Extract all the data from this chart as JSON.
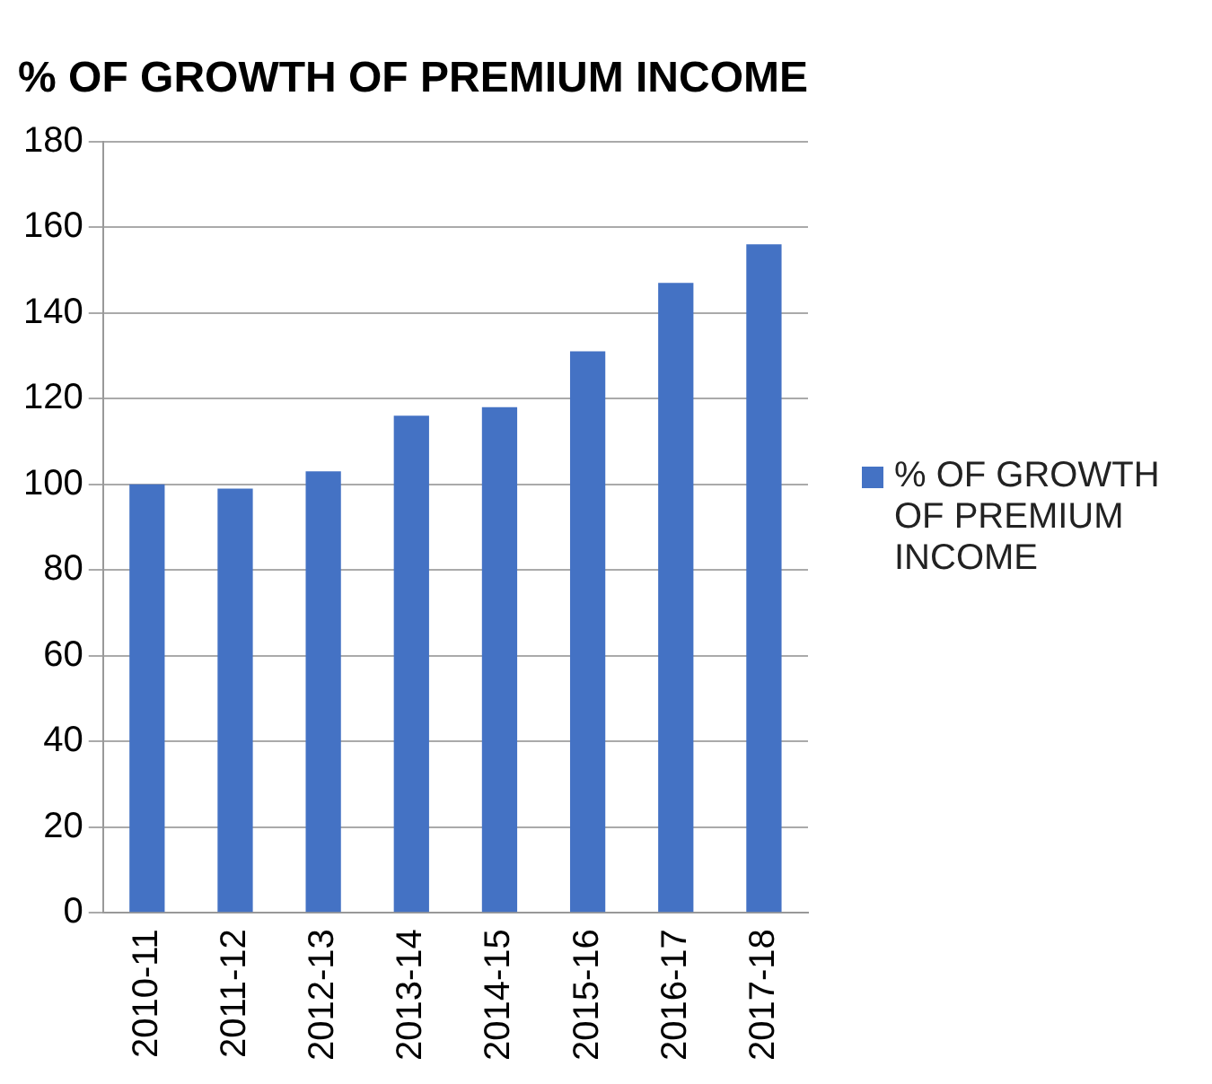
{
  "chart_data": {
    "type": "bar",
    "title": "% OF GROWTH OF PREMIUM INCOME",
    "categories": [
      "2010-11",
      "2011-12",
      "2012-13",
      "2013-14",
      "2014-15",
      "2015-16",
      "2016-17",
      "2017-18"
    ],
    "series": [
      {
        "name": "% OF GROWTH OF PREMIUM INCOME",
        "color": "#4472c4",
        "values": [
          100,
          99,
          103,
          116,
          118,
          131,
          147,
          156
        ]
      }
    ],
    "ylim": [
      0,
      180
    ],
    "yticks": [
      0,
      20,
      40,
      60,
      80,
      100,
      120,
      140,
      160,
      180
    ],
    "grid": "y",
    "legend": "right"
  }
}
